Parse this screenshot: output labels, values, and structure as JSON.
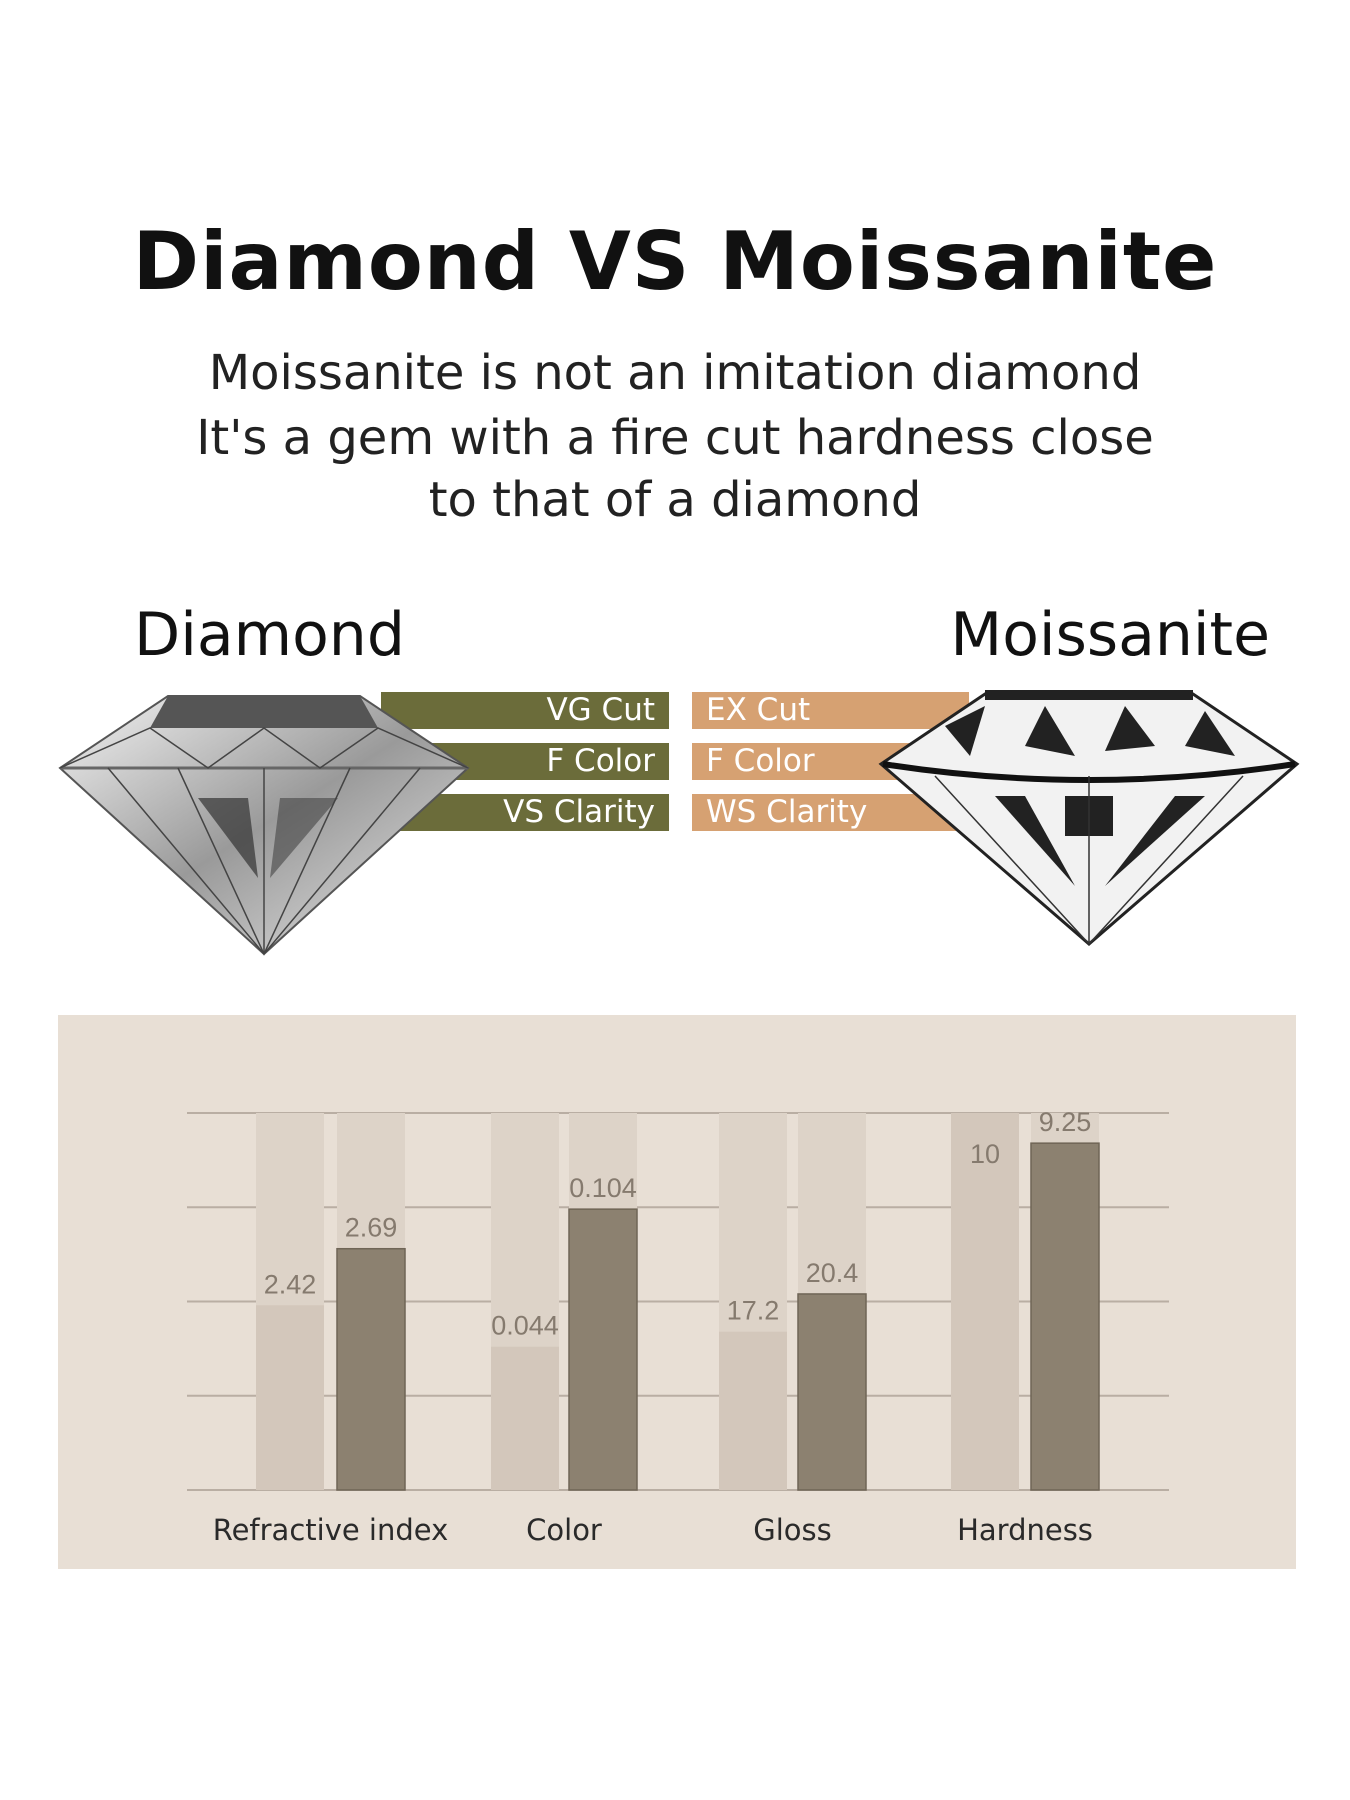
{
  "header": {
    "title": "Diamond VS Moissanite",
    "subtitle_lines": [
      "Moissanite is not an imitation diamond",
      "It's a gem with a fire cut hardness close",
      "to that of a diamond"
    ]
  },
  "comparison": {
    "diamond": {
      "label": "Diamond",
      "specs": [
        "VG Cut",
        "F Color",
        "VS Clarity"
      ],
      "color": "#6b6c3a"
    },
    "moissanite": {
      "label": "Moissanite",
      "specs": [
        "EX Cut",
        "F Color",
        "WS Clarity"
      ],
      "color": "#d6a172"
    }
  },
  "chart_data": {
    "type": "bar",
    "categories": [
      "Refractive index",
      "Color",
      "Gloss",
      "Hardness"
    ],
    "series": [
      {
        "values": [
          2.42,
          0.044,
          17.2,
          10
        ],
        "labels": [
          "2.42",
          "0.044",
          "17.2",
          "10"
        ],
        "fill_level": [
          0.49,
          0.38,
          0.42,
          1.0
        ],
        "color": "#d3c7bb"
      },
      {
        "values": [
          2.69,
          0.104,
          20.4,
          9.25
        ],
        "labels": [
          "2.69",
          "0.104",
          "20.4",
          "9.25"
        ],
        "fill_level": [
          0.64,
          0.745,
          0.52,
          0.92
        ],
        "color": "#8c8170"
      }
    ],
    "track_color": "#ddd3c8",
    "grid": true,
    "legend": "none"
  }
}
